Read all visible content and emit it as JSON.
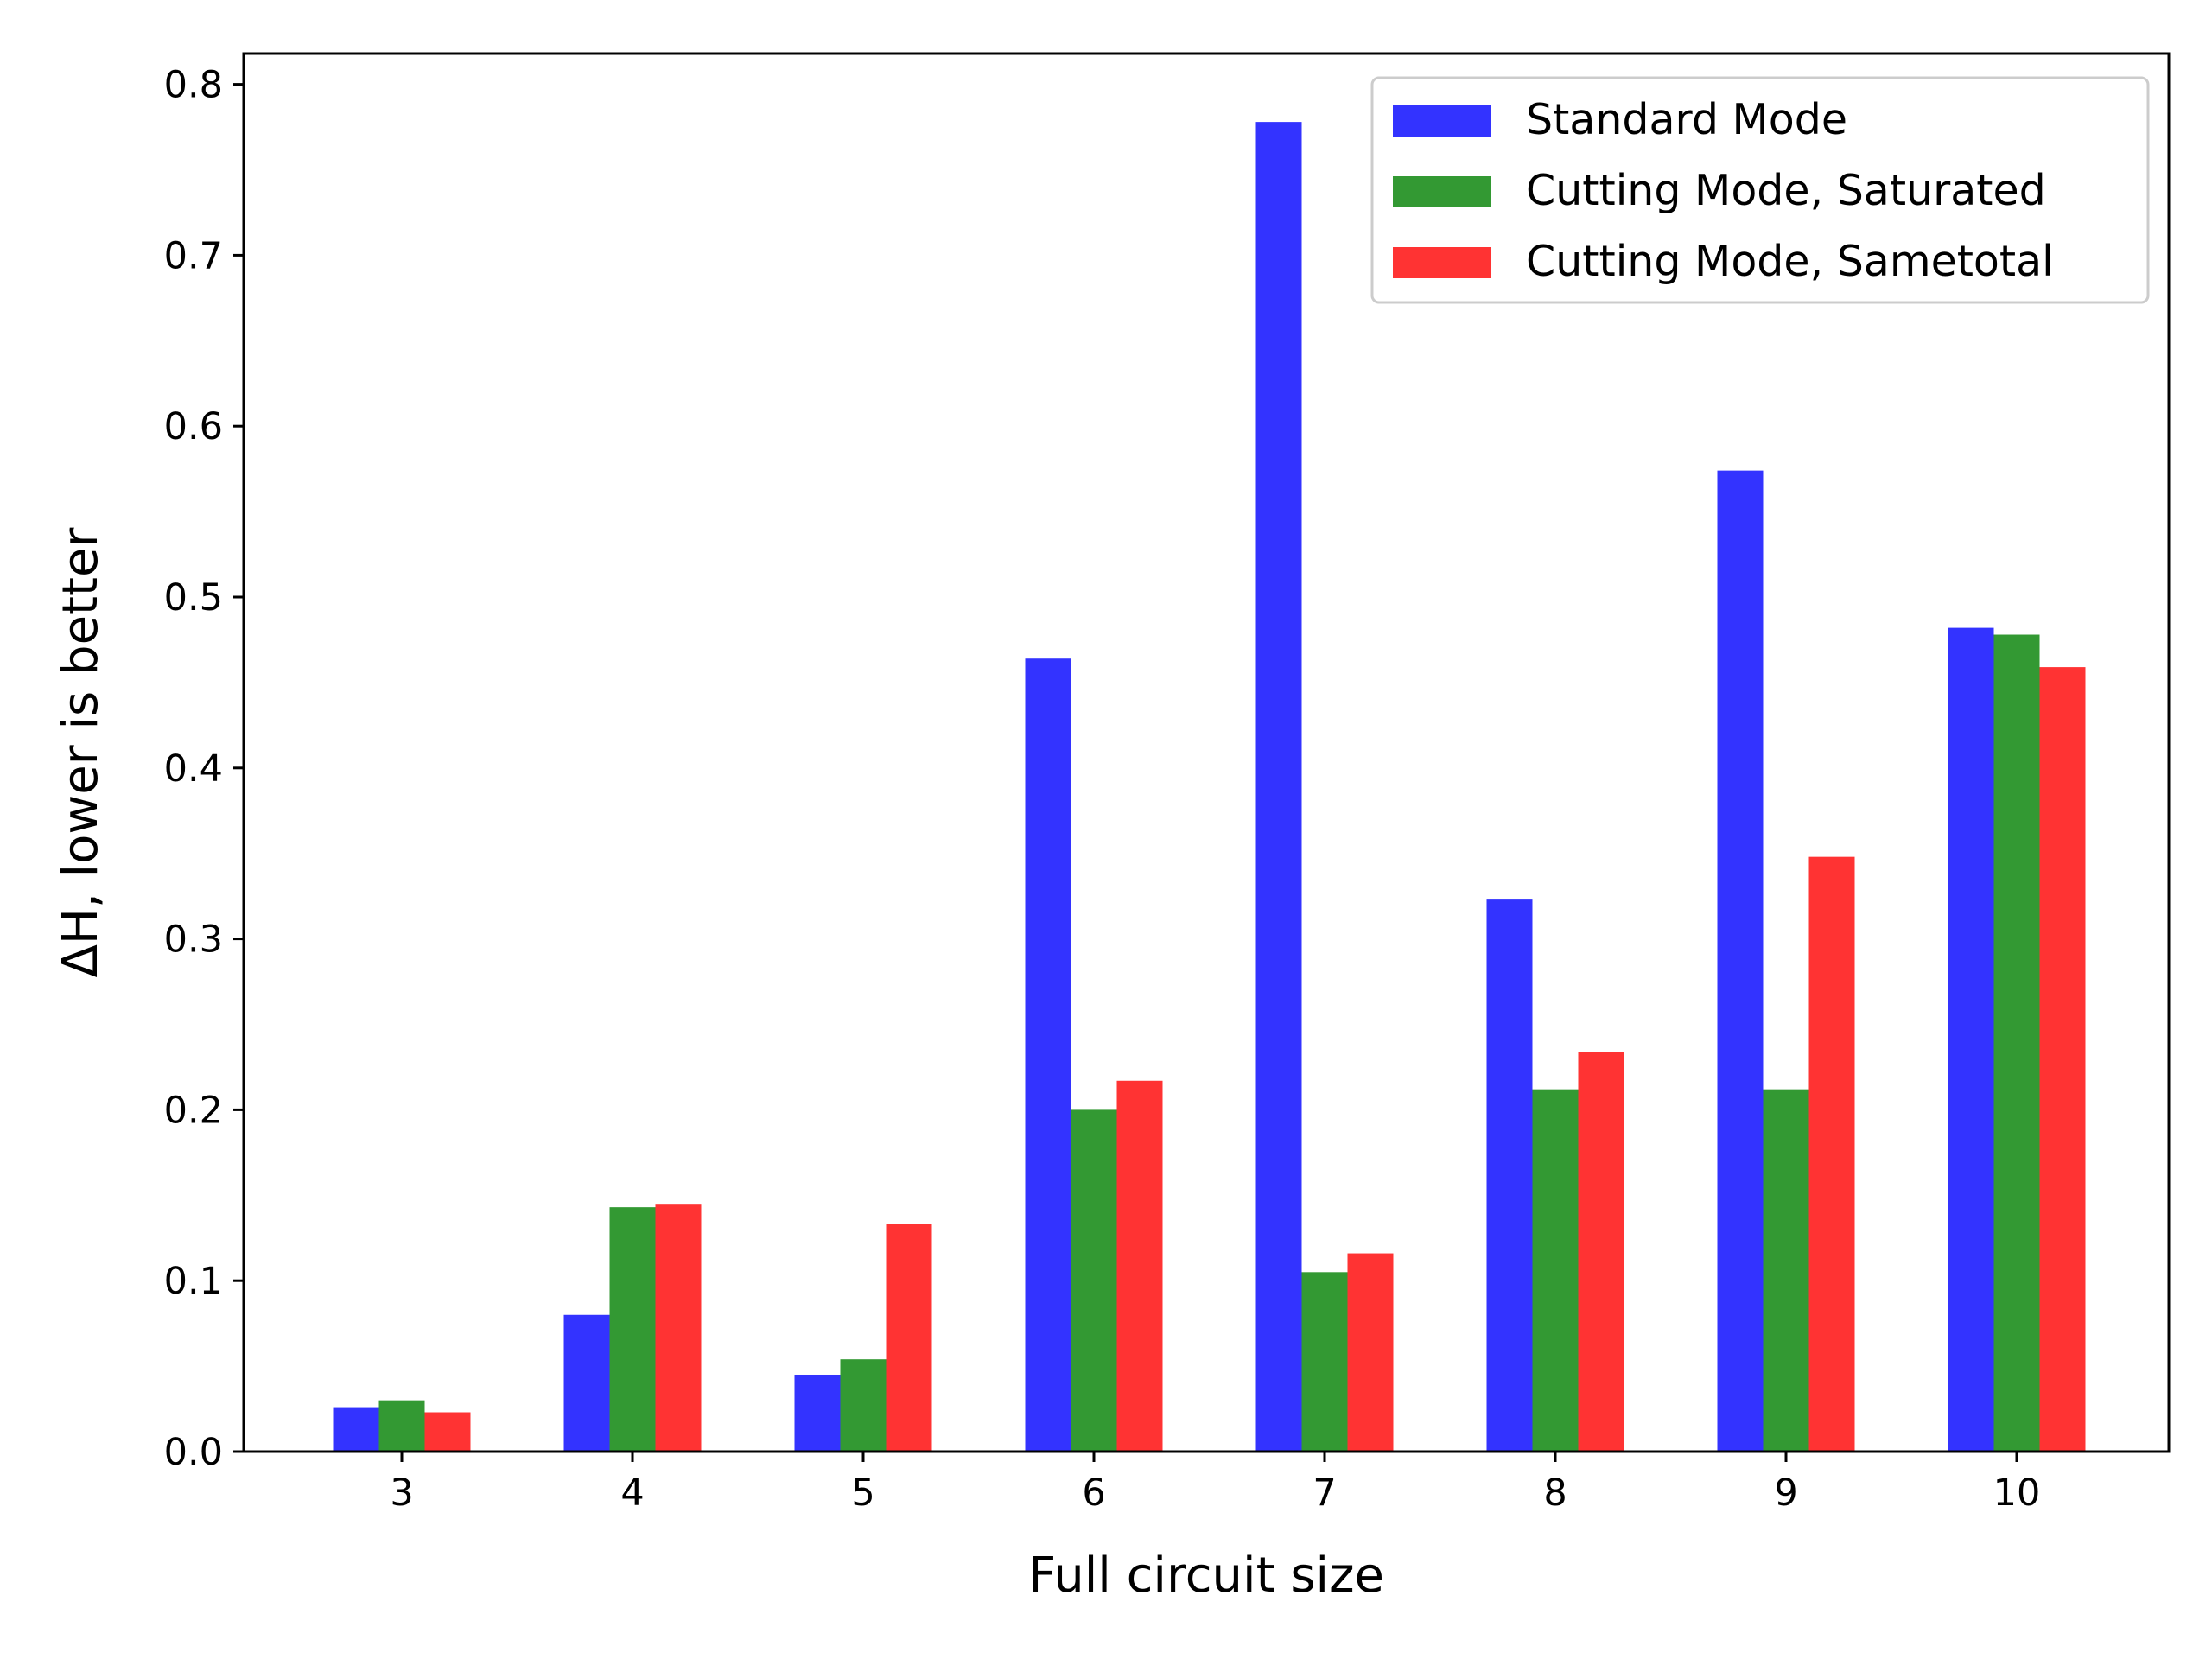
{
  "chart_data": {
    "type": "bar",
    "title": "",
    "xlabel": "Full circuit size",
    "ylabel": "ΔH, lower is better",
    "categories": [
      "3",
      "4",
      "5",
      "6",
      "7",
      "8",
      "9",
      "10"
    ],
    "series": [
      {
        "name": "Standard Mode",
        "color": "#3333ff",
        "values": [
          0.026,
          0.08,
          0.045,
          0.464,
          0.778,
          0.323,
          0.574,
          0.482
        ]
      },
      {
        "name": "Cutting Mode, Saturated",
        "color": "#339933",
        "values": [
          0.03,
          0.143,
          0.054,
          0.2,
          0.105,
          0.212,
          0.212,
          0.478
        ]
      },
      {
        "name": "Cutting Mode, Sametotal",
        "color": "#ff3333",
        "values": [
          0.023,
          0.145,
          0.133,
          0.217,
          0.116,
          0.234,
          0.348,
          0.459
        ]
      }
    ],
    "yticks": [
      "0.0",
      "0.1",
      "0.2",
      "0.3",
      "0.4",
      "0.5",
      "0.6",
      "0.7",
      "0.8"
    ],
    "ylim": [
      0,
      0.818
    ],
    "grid": false,
    "legend_position": "top-right"
  }
}
